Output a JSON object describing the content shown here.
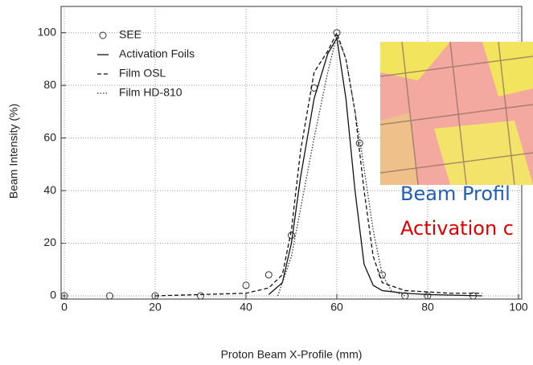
{
  "chart_data": {
    "type": "line",
    "xlabel": "Proton Beam X-Profile (mm)",
    "ylabel": "Beam Intensity (%)",
    "xlim": [
      0,
      100
    ],
    "ylim": [
      0,
      110
    ],
    "xticks": [
      0,
      20,
      40,
      60,
      80,
      100
    ],
    "yticks": [
      0,
      20,
      40,
      60,
      80,
      100
    ],
    "grid": true,
    "legend": "upper left",
    "series": [
      {
        "name": "SEE",
        "color": "#333333",
        "marker": "circle",
        "dash": "none",
        "x": [
          0,
          10,
          20,
          30,
          40,
          45,
          50,
          55,
          60,
          65,
          70,
          75,
          80,
          90
        ],
        "y": [
          0,
          0,
          0,
          0,
          4,
          8,
          23,
          79,
          100,
          58,
          8,
          0,
          0,
          0
        ]
      },
      {
        "name": "Activation Foils",
        "color": "#111111",
        "marker": "none",
        "dash": "solid",
        "x": [
          45,
          48,
          50,
          52,
          55,
          58,
          60,
          62,
          64,
          66,
          68,
          70,
          75,
          80,
          92
        ],
        "y": [
          0.5,
          5,
          20,
          45,
          75,
          92,
          98,
          75,
          40,
          12,
          4,
          2,
          1,
          0.5,
          0
        ]
      },
      {
        "name": "Film OSL",
        "color": "#111111",
        "marker": "none",
        "dash": "dashed",
        "x": [
          20,
          40,
          45,
          48,
          50,
          52,
          55,
          58,
          60,
          62,
          64,
          66,
          68,
          70,
          75,
          85,
          92
        ],
        "y": [
          0,
          1,
          3,
          8,
          25,
          55,
          85,
          93,
          100,
          90,
          70,
          40,
          15,
          5,
          2,
          1,
          1
        ]
      },
      {
        "name": "Film HD-810",
        "color": "#333333",
        "marker": "none",
        "dash": "dotted",
        "x": [
          47,
          50,
          55,
          58,
          60,
          62,
          65,
          68,
          70,
          72,
          75
        ],
        "y": [
          0,
          15,
          60,
          85,
          99,
          90,
          60,
          25,
          8,
          2,
          0
        ]
      }
    ]
  },
  "overlay": {
    "lines": [
      {
        "text": "Beam Profil",
        "color": "#1f5fb4"
      },
      {
        "text": "Activation c",
        "color": "#e00000"
      }
    ]
  }
}
